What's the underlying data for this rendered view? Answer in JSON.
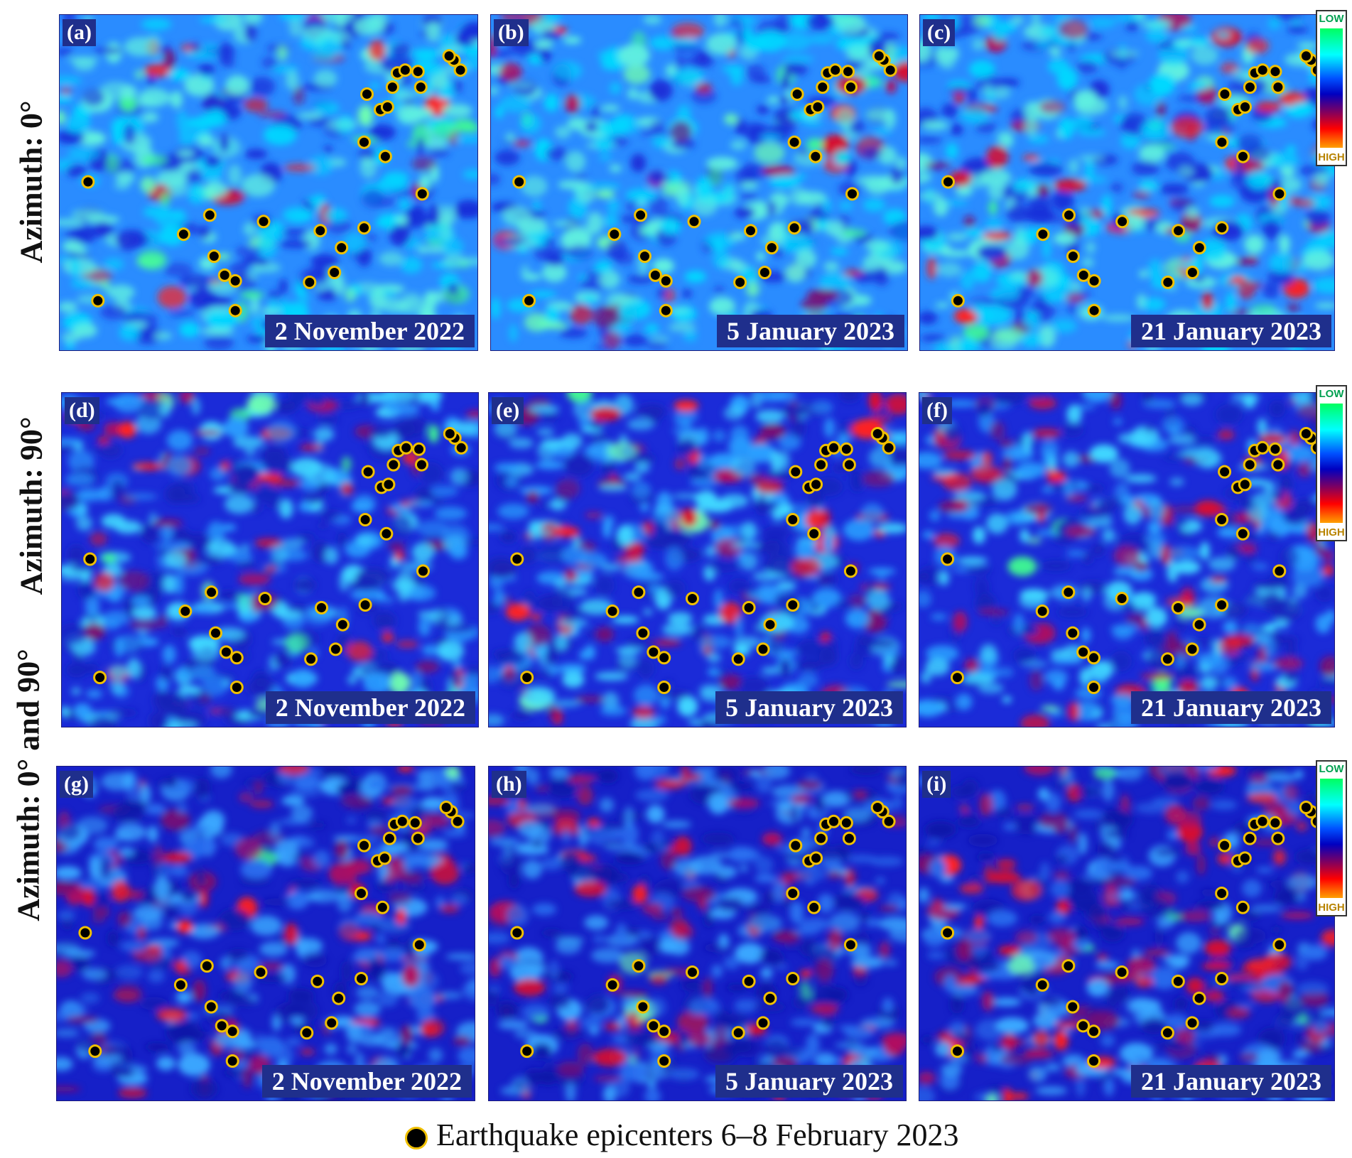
{
  "rows": [
    {
      "label": "Azimuth: 0°"
    },
    {
      "label": "Azimuth: 90°"
    },
    {
      "label": "Azimuth: 0°  and 90°"
    }
  ],
  "panels": [
    {
      "letter": "(a)",
      "date": "2 November 2022"
    },
    {
      "letter": "(b)",
      "date": "5 January 2023"
    },
    {
      "letter": "(c)",
      "date": "21 January 2023"
    },
    {
      "letter": "(d)",
      "date": "2 November 2022"
    },
    {
      "letter": "(e)",
      "date": "5 January 2023"
    },
    {
      "letter": "(f)",
      "date": "21 January 2023"
    },
    {
      "letter": "(g)",
      "date": "2 November 2022"
    },
    {
      "letter": "(h)",
      "date": "5 January 2023"
    },
    {
      "letter": "(i)",
      "date": "21 January 2023"
    }
  ],
  "scale": {
    "low": "LOW",
    "high": "HIGH"
  },
  "legend": {
    "label": "Earthquake epicenters 6–8 February 2023"
  },
  "colors": {
    "frame": "#1b1b7a",
    "label_box": "#1f2f8c",
    "epicenter_fill": "#000000",
    "epicenter_ring": "#f0c000"
  }
}
